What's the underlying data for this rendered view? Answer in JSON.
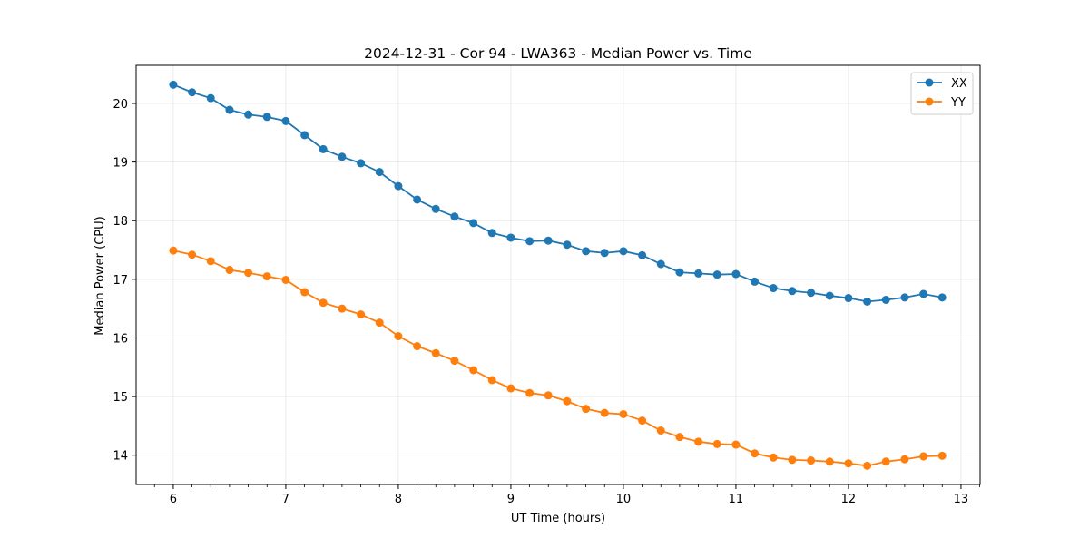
{
  "chart_data": {
    "type": "line",
    "title": "2024-12-31 - Cor 94 - LWA363 - Median Power vs. Time",
    "xlabel": "UT Time (hours)",
    "ylabel": "Median Power (CPU)",
    "xlim": [
      5.67,
      13.17
    ],
    "ylim": [
      13.5,
      20.65
    ],
    "xticks": [
      6,
      7,
      8,
      9,
      10,
      11,
      12,
      13
    ],
    "yticks": [
      14,
      15,
      16,
      17,
      18,
      19,
      20
    ],
    "grid": true,
    "legend_position": "top-right",
    "x": [
      6.0,
      6.167,
      6.333,
      6.5,
      6.667,
      6.833,
      7.0,
      7.167,
      7.333,
      7.5,
      7.667,
      7.833,
      8.0,
      8.167,
      8.333,
      8.5,
      8.667,
      8.833,
      9.0,
      9.167,
      9.333,
      9.5,
      9.667,
      9.833,
      10.0,
      10.167,
      10.333,
      10.5,
      10.667,
      10.833,
      11.0,
      11.167,
      11.333,
      11.5,
      11.667,
      11.833,
      12.0,
      12.167,
      12.333,
      12.5,
      12.667,
      12.833
    ],
    "series": [
      {
        "name": "XX",
        "color": "#1f77b4",
        "values": [
          20.32,
          20.19,
          20.09,
          19.89,
          19.81,
          19.77,
          19.7,
          19.46,
          19.22,
          19.09,
          18.98,
          18.83,
          18.59,
          18.36,
          18.2,
          18.07,
          17.96,
          17.79,
          17.71,
          17.65,
          17.66,
          17.59,
          17.48,
          17.45,
          17.48,
          17.41,
          17.26,
          17.12,
          17.1,
          17.08,
          17.09,
          16.96,
          16.85,
          16.8,
          16.77,
          16.72,
          16.68,
          16.62,
          16.65,
          16.69,
          16.75,
          16.69
        ]
      },
      {
        "name": "YY",
        "color": "#ff7f0e",
        "values": [
          17.49,
          17.42,
          17.31,
          17.16,
          17.11,
          17.05,
          16.99,
          16.78,
          16.6,
          16.5,
          16.4,
          16.26,
          16.03,
          15.86,
          15.74,
          15.61,
          15.45,
          15.28,
          15.14,
          15.06,
          15.02,
          14.92,
          14.79,
          14.72,
          14.7,
          14.59,
          14.42,
          14.31,
          14.23,
          14.19,
          14.18,
          14.03,
          13.96,
          13.92,
          13.91,
          13.89,
          13.86,
          13.82,
          13.89,
          13.93,
          13.98,
          13.99
        ]
      }
    ]
  }
}
